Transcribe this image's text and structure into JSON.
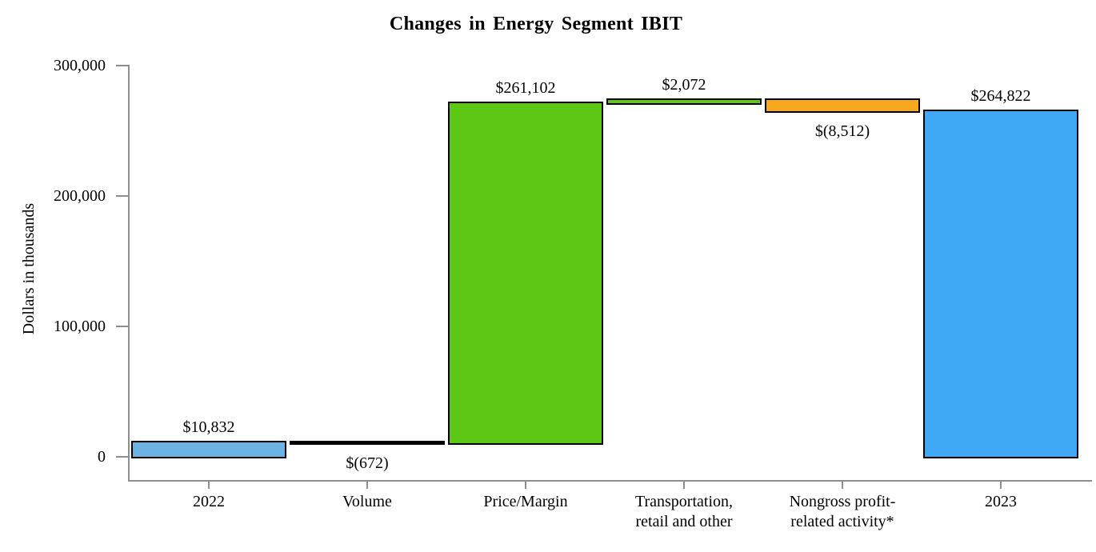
{
  "chart_data": {
    "type": "bar",
    "subtype": "waterfall",
    "title": "Changes in Energy Segment IBIT",
    "ylabel": "Dollars in thousands",
    "ylim": [
      0,
      300000
    ],
    "grid": false,
    "legend": "none",
    "axis_color": "#8d8d8d",
    "bar_border_color": "#000000",
    "yticks": [
      {
        "value": 0,
        "label": "0"
      },
      {
        "value": 100000,
        "label": "100,000"
      },
      {
        "value": 200000,
        "label": "200,000"
      },
      {
        "value": 300000,
        "label": "300,000"
      }
    ],
    "categories": [
      "2022",
      "Volume",
      "Price/Margin",
      "Transportation, retail and other",
      "Nongross profit-related activity*",
      "2023"
    ],
    "bars": [
      {
        "category_lines": [
          "2022"
        ],
        "kind": "total",
        "value": 10832,
        "start": 0,
        "end": 10832,
        "value_label": "$10,832",
        "label_position": "above",
        "color": "#6cb2e2"
      },
      {
        "category_lines": [
          "Volume"
        ],
        "kind": "decrease",
        "value": -672,
        "start": 10160,
        "end": 10832,
        "value_label": "$(672)",
        "label_position": "below",
        "color": "#000000"
      },
      {
        "category_lines": [
          "Price/Margin"
        ],
        "kind": "increase",
        "value": 261102,
        "start": 10160,
        "end": 271262,
        "value_label": "$261,102",
        "label_position": "above",
        "color": "#5cc813"
      },
      {
        "category_lines": [
          "Transportation,",
          "retail and other"
        ],
        "kind": "increase",
        "value": 2072,
        "start": 271262,
        "end": 273334,
        "value_label": "$2,072",
        "label_position": "above",
        "color": "#5cc813"
      },
      {
        "category_lines": [
          "Nongross profit-",
          "related activity*"
        ],
        "kind": "decrease",
        "value": -8512,
        "start": 264822,
        "end": 273334,
        "value_label": "$(8,512)",
        "label_position": "below",
        "color": "#f7a81c"
      },
      {
        "category_lines": [
          "2023"
        ],
        "kind": "total",
        "value": 264822,
        "start": 0,
        "end": 264822,
        "value_label": "$264,822",
        "label_position": "above",
        "color": "#3fa9f8"
      }
    ]
  }
}
